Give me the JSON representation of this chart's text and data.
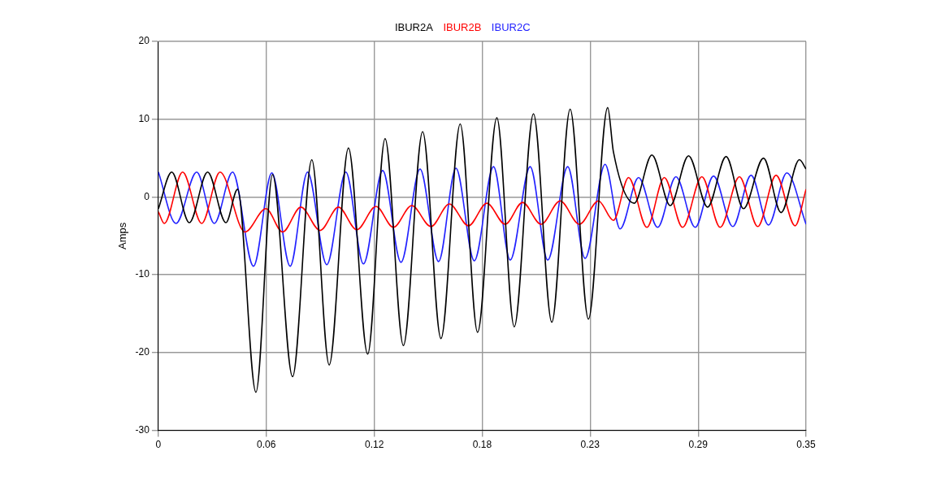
{
  "chart_data": {
    "type": "line",
    "ylabel": "Amps",
    "legend": "top",
    "grid": true,
    "marker": "none",
    "line_style": "solid",
    "xlim": [
      0,
      0.35
    ],
    "xticks": [
      0,
      {
        "value": 0.0583,
        "label": "0.06"
      },
      {
        "value": 0.1167,
        "label": "0.12"
      },
      {
        "value": 0.175,
        "label": "0.18"
      },
      {
        "value": 0.2333,
        "label": "0.23"
      },
      {
        "value": 0.2917,
        "label": "0.29"
      },
      0.35
    ],
    "ylim": [
      -30,
      20
    ],
    "yticks": [
      -30,
      -20,
      -10,
      0,
      10,
      20
    ],
    "series": [
      {
        "name": "IBUR2A",
        "color": "#000000",
        "x": [
          0,
          0.0072,
          0.0167,
          0.0266,
          0.0365,
          0.0428,
          0.0527,
          0.0617,
          0.0725,
          0.0829,
          0.0923,
          0.1027,
          0.1131,
          0.1225,
          0.1324,
          0.1428,
          0.1527,
          0.1631,
          0.1725,
          0.1829,
          0.1923,
          0.2027,
          0.2126,
          0.2225,
          0.2324,
          0.2428,
          0.2459,
          0.2572,
          0.2667,
          0.2766,
          0.2865,
          0.2968,
          0.3068,
          0.3162,
          0.327,
          0.3365,
          0.3464,
          0.35
        ],
        "values": [
          -1.5,
          3.2,
          -3.3,
          3.2,
          -3.3,
          1.0,
          -25.1,
          2.9,
          -23.1,
          4.8,
          -21.6,
          6.3,
          -20.2,
          7.5,
          -19.1,
          8.4,
          -18.2,
          9.4,
          -17.4,
          10.2,
          -16.7,
          10.7,
          -16.1,
          11.3,
          -15.7,
          11.5,
          5.8,
          -0.8,
          5.4,
          -1.1,
          5.3,
          -1.3,
          5.2,
          -1.5,
          5.0,
          -2.0,
          4.8,
          3.6
        ]
      },
      {
        "name": "IBUR2B",
        "color": "#ff0000",
        "x": [
          0,
          0.0032,
          0.0131,
          0.0234,
          0.0333,
          0.0468,
          0.0581,
          0.0671,
          0.077,
          0.0874,
          0.0973,
          0.1072,
          0.1176,
          0.127,
          0.1369,
          0.1473,
          0.1572,
          0.1676,
          0.1775,
          0.1874,
          0.1968,
          0.2068,
          0.2171,
          0.2275,
          0.2378,
          0.2459,
          0.2541,
          0.264,
          0.2734,
          0.2833,
          0.2937,
          0.3036,
          0.314,
          0.3239,
          0.3338,
          0.3441,
          0.35
        ],
        "values": [
          -1.9,
          -3.4,
          3.2,
          -3.4,
          3.2,
          -4.5,
          -1.5,
          -4.5,
          -1.3,
          -4.3,
          -1.3,
          -4.2,
          -1.2,
          -3.9,
          -1.1,
          -3.8,
          -0.9,
          -3.7,
          -0.8,
          -3.5,
          -0.7,
          -3.5,
          -0.5,
          -3.5,
          -0.5,
          -3.0,
          2.5,
          -3.9,
          2.5,
          -3.9,
          2.6,
          -3.9,
          2.6,
          -3.8,
          2.8,
          -3.7,
          1.0
        ]
      },
      {
        "name": "IBUR2C",
        "color": "#2222ff",
        "x": [
          0,
          0.0095,
          0.0207,
          0.0302,
          0.0401,
          0.0514,
          0.0613,
          0.0712,
          0.0806,
          0.091,
          0.1013,
          0.1108,
          0.1212,
          0.1311,
          0.1414,
          0.1514,
          0.1608,
          0.1707,
          0.1811,
          0.1901,
          0.2009,
          0.2104,
          0.2212,
          0.2306,
          0.2414,
          0.2495,
          0.2595,
          0.2698,
          0.2797,
          0.2901,
          0.3,
          0.3104,
          0.3203,
          0.3297,
          0.3396,
          0.35
        ],
        "values": [
          3.2,
          -3.4,
          3.2,
          -3.4,
          3.2,
          -8.9,
          3.1,
          -8.9,
          3.2,
          -8.7,
          3.2,
          -8.6,
          3.4,
          -8.4,
          3.6,
          -8.3,
          3.7,
          -8.2,
          3.9,
          -8.1,
          3.9,
          -8.1,
          3.9,
          -7.9,
          4.2,
          -4.1,
          2.5,
          -3.9,
          2.6,
          -3.9,
          2.7,
          -3.8,
          2.8,
          -3.6,
          3.1,
          -3.5
        ]
      }
    ]
  }
}
